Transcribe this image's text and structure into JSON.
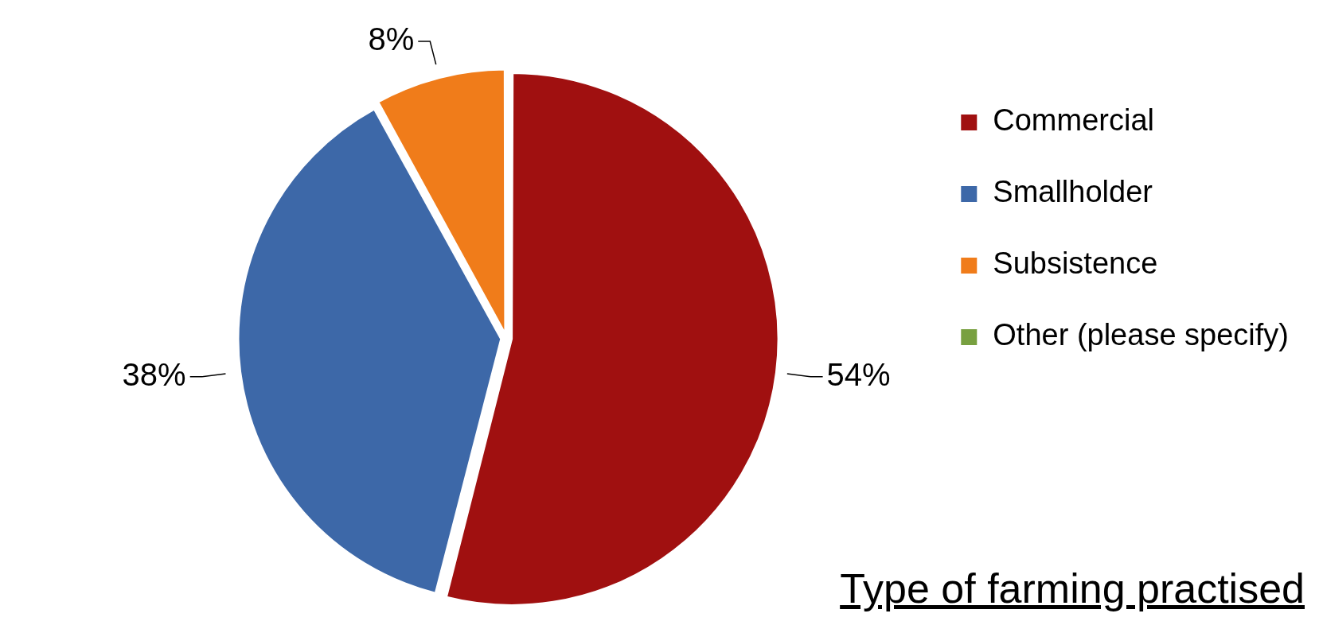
{
  "chart_data": {
    "type": "pie",
    "title": "Type of farming practised",
    "categories": [
      "Commercial",
      "Smallholder",
      "Subsistence",
      "Other (please specify)"
    ],
    "values": [
      54,
      38,
      8,
      0
    ],
    "colors": [
      "#a01010",
      "#3d68a8",
      "#f07c1a",
      "#78a040"
    ],
    "value_labels": [
      "54%",
      "38%",
      "8%",
      null
    ],
    "legend": "right"
  }
}
